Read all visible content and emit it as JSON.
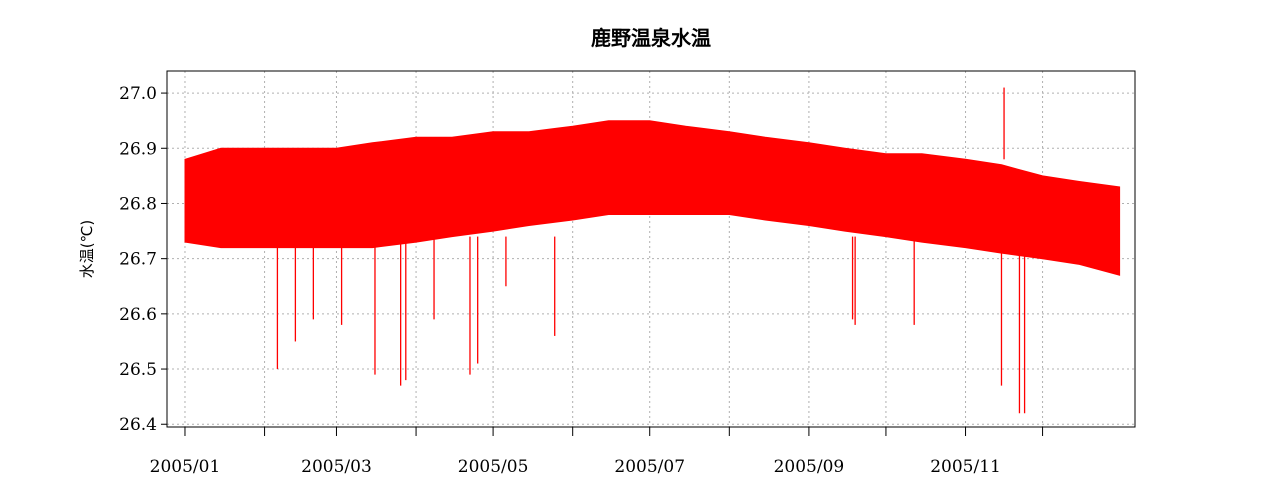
{
  "chart_data": {
    "type": "line",
    "title": "鹿野温泉水温",
    "ylabel": "水温(℃)",
    "xlabel": "",
    "color": "#ff0000",
    "grid": true,
    "ylim": [
      26.4,
      27.0
    ],
    "yticks": [
      26.4,
      26.5,
      26.6,
      26.7,
      26.8,
      26.9,
      27.0
    ],
    "yticklabels": [
      "26.4",
      "26.5",
      "26.6",
      "26.7",
      "26.8",
      "26.9",
      "27.0"
    ],
    "xlim": [
      "2004-12-25",
      "2006-01-06"
    ],
    "xticks": [
      "2005-01-01",
      "2005-02-01",
      "2005-03-01",
      "2005-04-01",
      "2005-05-01",
      "2005-06-01",
      "2005-07-01",
      "2005-08-01",
      "2005-09-01",
      "2005-10-01",
      "2005-11-01",
      "2005-12-01"
    ],
    "xticklabels": [
      "2005/01",
      "",
      "2005/03",
      "",
      "2005/05",
      "",
      "2005/07",
      "",
      "2005/09",
      "",
      "2005/11",
      ""
    ],
    "series": [
      {
        "x": [
          "2005-01-01",
          "2005-01-15",
          "2005-02-01",
          "2005-02-15",
          "2005-03-01",
          "2005-03-15",
          "2005-04-01",
          "2005-04-15",
          "2005-05-01",
          "2005-05-15",
          "2005-06-01",
          "2005-06-15",
          "2005-07-01",
          "2005-07-15",
          "2005-08-01",
          "2005-08-15",
          "2005-09-01",
          "2005-09-15",
          "2005-10-01",
          "2005-10-15",
          "2005-11-01",
          "2005-11-15",
          "2005-12-01",
          "2005-12-15",
          "2005-12-31"
        ],
        "low": [
          26.73,
          26.72,
          26.72,
          26.72,
          26.72,
          26.72,
          26.73,
          26.74,
          26.75,
          26.76,
          26.77,
          26.78,
          26.78,
          26.78,
          26.78,
          26.77,
          26.76,
          26.75,
          26.74,
          26.73,
          26.72,
          26.71,
          26.7,
          26.69,
          26.67
        ],
        "high": [
          26.88,
          26.9,
          26.9,
          26.9,
          26.9,
          26.91,
          26.92,
          26.92,
          26.93,
          26.93,
          26.94,
          26.95,
          26.95,
          26.94,
          26.93,
          26.92,
          26.91,
          26.9,
          26.89,
          26.89,
          26.88,
          26.87,
          26.85,
          26.84,
          26.83
        ]
      }
    ],
    "spikes": [
      {
        "x": "2005-02-06",
        "y": 26.5
      },
      {
        "x": "2005-02-13",
        "y": 26.55
      },
      {
        "x": "2005-02-20",
        "y": 26.59
      },
      {
        "x": "2005-03-03",
        "y": 26.58
      },
      {
        "x": "2005-03-16",
        "y": 26.49
      },
      {
        "x": "2005-03-26",
        "y": 26.47
      },
      {
        "x": "2005-03-28",
        "y": 26.48
      },
      {
        "x": "2005-04-08",
        "y": 26.59
      },
      {
        "x": "2005-04-22",
        "y": 26.49
      },
      {
        "x": "2005-04-25",
        "y": 26.51
      },
      {
        "x": "2005-05-06",
        "y": 26.65
      },
      {
        "x": "2005-05-25",
        "y": 26.56
      },
      {
        "x": "2005-09-18",
        "y": 26.59
      },
      {
        "x": "2005-09-19",
        "y": 26.58
      },
      {
        "x": "2005-10-12",
        "y": 26.58
      },
      {
        "x": "2005-11-15",
        "y": 26.47
      },
      {
        "x": "2005-11-16",
        "y": 27.01
      },
      {
        "x": "2005-11-22",
        "y": 26.42
      },
      {
        "x": "2005-11-24",
        "y": 26.42
      }
    ]
  }
}
